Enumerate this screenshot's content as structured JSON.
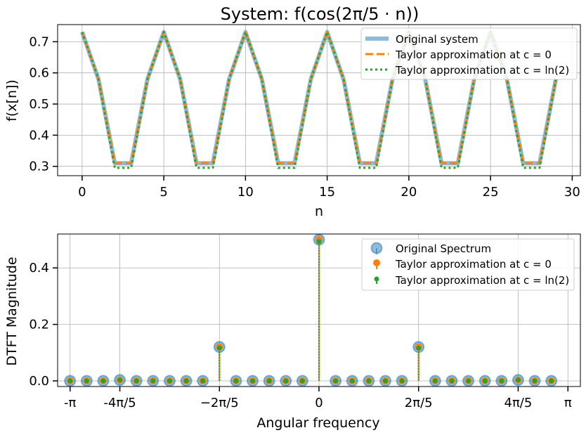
{
  "figure": {
    "title": "System: f(cos(2π/5 · n))"
  },
  "chart_data": [
    {
      "type": "line",
      "title": "System: f(cos(2π/5 · n))",
      "xlabel": "n",
      "ylabel": "f(x[n])",
      "xlim": [
        -1.5,
        30.5
      ],
      "ylim": [
        0.27,
        0.755
      ],
      "x_ticks": [
        0,
        5,
        10,
        15,
        20,
        25,
        30
      ],
      "y_ticks": [
        0.3,
        0.4,
        0.5,
        0.6,
        0.7
      ],
      "x_tick_labels": [
        "0",
        "5",
        "10",
        "15",
        "20",
        "25",
        "30"
      ],
      "y_tick_labels": [
        "0.3",
        "0.4",
        "0.5",
        "0.6",
        "0.7"
      ],
      "grid": true,
      "legend_position": "top-right",
      "x": [
        0,
        1,
        2,
        3,
        4,
        5,
        6,
        7,
        8,
        9,
        10,
        11,
        12,
        13,
        14,
        15,
        16,
        17,
        18,
        19,
        20,
        21,
        22,
        23,
        24,
        25,
        26,
        27,
        28,
        29
      ],
      "series": [
        {
          "name": "Original system",
          "color": "#1f77b4",
          "style": "solid-thick-translucent",
          "values": [
            0.731,
            0.58,
            0.31,
            0.31,
            0.58,
            0.731,
            0.58,
            0.31,
            0.31,
            0.58,
            0.731,
            0.58,
            0.31,
            0.31,
            0.58,
            0.731,
            0.58,
            0.31,
            0.31,
            0.58,
            0.731,
            0.58,
            0.31,
            0.31,
            0.58,
            0.731,
            0.58,
            0.31,
            0.31,
            0.58
          ]
        },
        {
          "name": "Taylor approximation at c = 0",
          "color": "#ff7f0e",
          "style": "dashed",
          "values": [
            0.731,
            0.58,
            0.31,
            0.31,
            0.58,
            0.731,
            0.58,
            0.31,
            0.31,
            0.58,
            0.731,
            0.58,
            0.31,
            0.31,
            0.58,
            0.731,
            0.58,
            0.31,
            0.31,
            0.58,
            0.731,
            0.58,
            0.31,
            0.31,
            0.58,
            0.731,
            0.58,
            0.31,
            0.31,
            0.58
          ]
        },
        {
          "name": "Taylor approximation at c = ln(2)",
          "color": "#2ca02c",
          "style": "dotted",
          "values": [
            0.731,
            0.58,
            0.295,
            0.295,
            0.58,
            0.731,
            0.58,
            0.295,
            0.295,
            0.58,
            0.731,
            0.58,
            0.295,
            0.295,
            0.58,
            0.731,
            0.58,
            0.295,
            0.295,
            0.58,
            0.731,
            0.58,
            0.295,
            0.295,
            0.58,
            0.731,
            0.58,
            0.295,
            0.295,
            0.58
          ]
        }
      ]
    },
    {
      "type": "scatter",
      "subtype": "stem",
      "xlabel": "Angular frequency",
      "ylabel": "DTFT Magnitude",
      "xlim_units_of_pi": [
        -1.05,
        1.05
      ],
      "ylim": [
        -0.02,
        0.52
      ],
      "x_ticks_units_of_pi": [
        -1,
        -0.8,
        -0.4,
        0,
        0.4,
        0.8,
        1
      ],
      "x_tick_labels": [
        "-π",
        "-4π/5",
        "−2π/5",
        "0",
        "2π/5",
        "4π/5",
        "π"
      ],
      "y_ticks": [
        0.0,
        0.2,
        0.4
      ],
      "y_tick_labels": [
        "0.0",
        "0.2",
        "0.4"
      ],
      "grid": true,
      "legend_position": "top-right",
      "x_units_of_pi": [
        -1.0,
        -0.9333,
        -0.8667,
        -0.8,
        -0.7333,
        -0.6667,
        -0.6,
        -0.5333,
        -0.4667,
        -0.4,
        -0.3333,
        -0.2667,
        -0.2,
        -0.1333,
        -0.0667,
        0.0,
        0.0667,
        0.1333,
        0.2,
        0.2667,
        0.3333,
        0.4,
        0.4667,
        0.5333,
        0.6,
        0.6667,
        0.7333,
        0.8,
        0.8667,
        0.9333
      ],
      "series": [
        {
          "name": "Original Spectrum",
          "color": "#1f77b4",
          "values": [
            0,
            0,
            0,
            0.003,
            0,
            0,
            0,
            0,
            0,
            0.12,
            0,
            0,
            0,
            0,
            0,
            0.5,
            0,
            0,
            0,
            0,
            0,
            0.12,
            0,
            0,
            0,
            0,
            0,
            0.003,
            0,
            0
          ]
        },
        {
          "name": "Taylor approximation at c = 0",
          "color": "#ff7f0e",
          "values": [
            0,
            0,
            0,
            0.003,
            0,
            0,
            0,
            0,
            0,
            0.12,
            0,
            0,
            0,
            0,
            0,
            0.5,
            0,
            0,
            0,
            0,
            0,
            0.12,
            0,
            0,
            0,
            0,
            0,
            0.003,
            0,
            0
          ]
        },
        {
          "name": "Taylor approximation at c = ln(2)",
          "color": "#2ca02c",
          "values": [
            0,
            0,
            0,
            0.003,
            0,
            0,
            0,
            0,
            0,
            0.116,
            0,
            0,
            0,
            0,
            0,
            0.493,
            0,
            0,
            0,
            0,
            0,
            0.116,
            0,
            0,
            0,
            0,
            0,
            0.003,
            0,
            0
          ]
        }
      ]
    }
  ]
}
